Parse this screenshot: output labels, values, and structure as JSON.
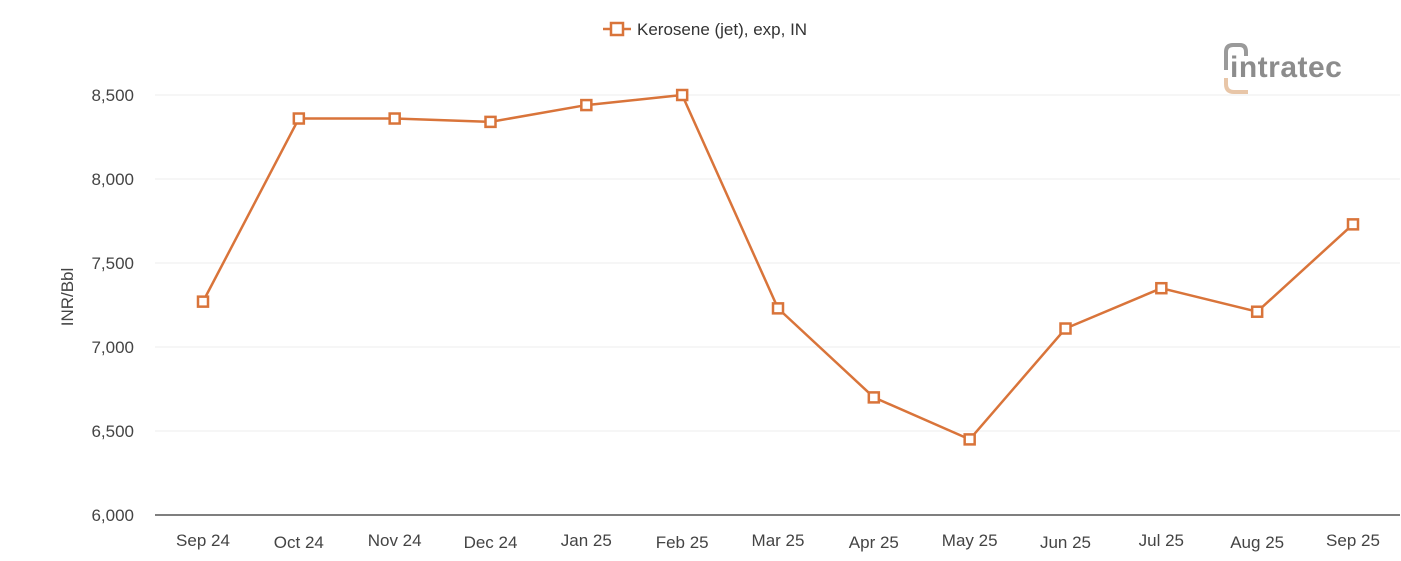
{
  "chart_data": {
    "type": "line",
    "title": "",
    "xlabel": "",
    "ylabel": "INR/Bbl",
    "ylim": [
      6000,
      8500
    ],
    "yticks": [
      6000,
      6500,
      7000,
      7500,
      8000,
      8500
    ],
    "ytick_labels": [
      "6,000",
      "6,500",
      "7,000",
      "7,500",
      "8,000",
      "8,500"
    ],
    "grid": true,
    "legend_position": "top-center",
    "categories": [
      "Sep 24",
      "Oct 24",
      "Nov 24",
      "Dec 24",
      "Jan 25",
      "Feb 25",
      "Mar 25",
      "Apr 25",
      "May 25",
      "Jun 25",
      "Jul 25",
      "Aug 25",
      "Sep 25"
    ],
    "series": [
      {
        "name": "Kerosene (jet), exp, IN",
        "color": "#d9743a",
        "marker": "hollow-square",
        "values": [
          7270,
          8360,
          8360,
          8340,
          8440,
          8500,
          7230,
          6700,
          6450,
          7110,
          7350,
          7210,
          7730
        ]
      }
    ]
  },
  "legend": {
    "label": "Kerosene (jet), exp, IN"
  },
  "axis": {
    "ylabel": "INR/Bbl"
  },
  "logo": {
    "text": "intratec"
  },
  "colors": {
    "series": "#d9743a",
    "grid": "#eeeeee",
    "axis": "#555555",
    "logo_accent": "#e8c6a8",
    "logo_text": "#8c8c8c"
  }
}
